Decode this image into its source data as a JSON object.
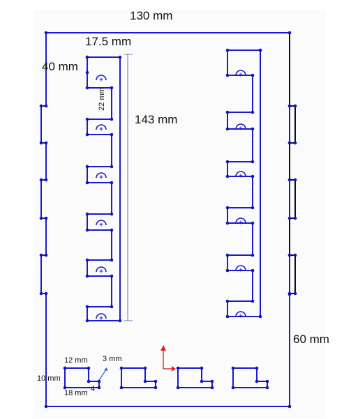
{
  "labels": {
    "overall_width": "130 mm",
    "slot_offset": "17.5 mm",
    "top_offset": "40 mm",
    "slot_spacing": "22 mm",
    "column_height": "143 mm",
    "bottom_height": "60 mm",
    "small_top": "12 mm",
    "small_side": "3 mm",
    "small_height": "10 mm",
    "small_width": "18 mm",
    "small_notch": "4"
  },
  "colors": {
    "outline": "#1a1ad0",
    "vertex": "#1414b8",
    "edge_black": "#111111",
    "dim_line": "#5f7fb8",
    "axis_red": "#e02020",
    "axis_blue": "#2a5fcf"
  }
}
